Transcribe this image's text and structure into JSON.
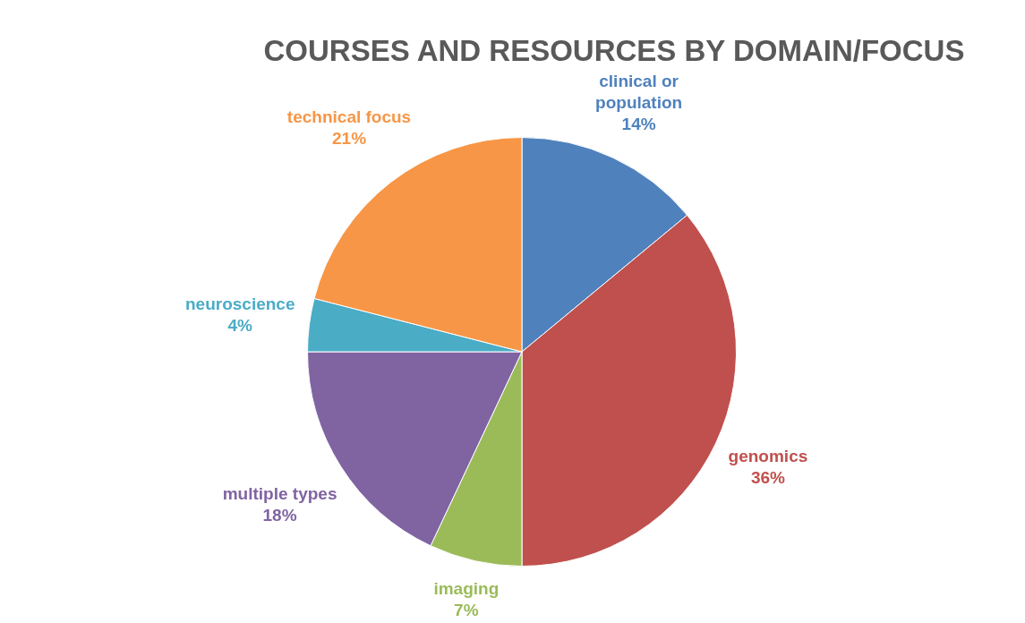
{
  "chart_data": {
    "type": "pie",
    "title": "COURSES AND RESOURCES BY DOMAIN/FOCUS",
    "categories": [
      "clinical or population",
      "genomics",
      "imaging",
      "multiple types",
      "neuroscience",
      "technical focus"
    ],
    "values": [
      14,
      36,
      7,
      18,
      4,
      21
    ],
    "value_labels": [
      "14%",
      "36%",
      "7%",
      "18%",
      "4%",
      "21%"
    ],
    "colors": [
      "#4f81bd",
      "#c0504d",
      "#9bbb59",
      "#8064a2",
      "#4bacc6",
      "#f79646"
    ],
    "legend": false
  }
}
